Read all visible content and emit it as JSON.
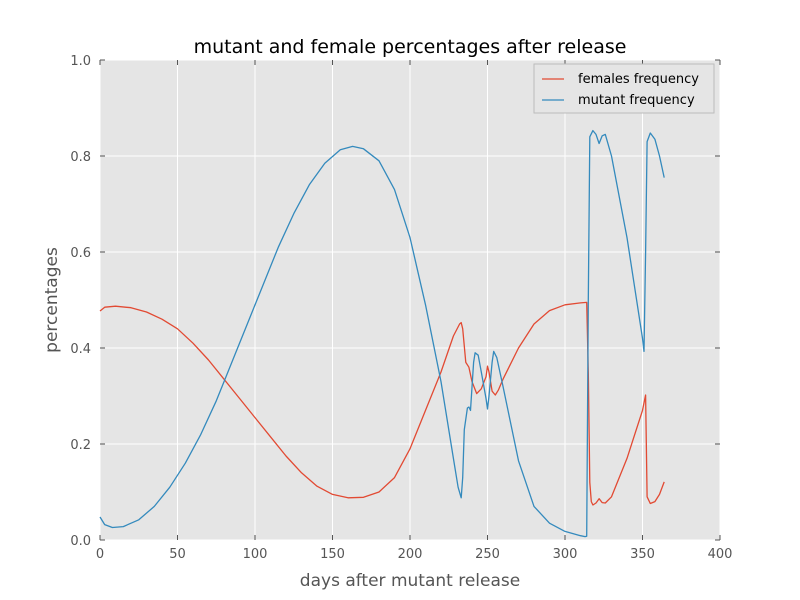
{
  "chart_data": {
    "type": "line",
    "title": "mutant and female percentages after release",
    "xlabel": "days after mutant release",
    "ylabel": "percentages",
    "xlim": [
      0,
      400
    ],
    "ylim": [
      0.0,
      1.0
    ],
    "xticks": [
      "0",
      "50",
      "100",
      "150",
      "200",
      "250",
      "300",
      "350",
      "400"
    ],
    "yticks": [
      "0.0",
      "0.2",
      "0.4",
      "0.6",
      "0.8",
      "1.0"
    ],
    "grid": true,
    "background": "#e5e5e5",
    "legend_position": "top-right",
    "series": [
      {
        "name": "females frequency",
        "color": "#e24a33",
        "points": [
          [
            0,
            0.477
          ],
          [
            3,
            0.485
          ],
          [
            10,
            0.487
          ],
          [
            20,
            0.484
          ],
          [
            30,
            0.475
          ],
          [
            40,
            0.46
          ],
          [
            50,
            0.44
          ],
          [
            60,
            0.41
          ],
          [
            70,
            0.375
          ],
          [
            80,
            0.335
          ],
          [
            90,
            0.295
          ],
          [
            100,
            0.255
          ],
          [
            110,
            0.215
          ],
          [
            120,
            0.175
          ],
          [
            130,
            0.14
          ],
          [
            140,
            0.112
          ],
          [
            150,
            0.095
          ],
          [
            160,
            0.088
          ],
          [
            170,
            0.089
          ],
          [
            180,
            0.1
          ],
          [
            190,
            0.13
          ],
          [
            200,
            0.19
          ],
          [
            210,
            0.27
          ],
          [
            220,
            0.35
          ],
          [
            228,
            0.425
          ],
          [
            232,
            0.45
          ],
          [
            233,
            0.453
          ],
          [
            234,
            0.44
          ],
          [
            236,
            0.37
          ],
          [
            238,
            0.36
          ],
          [
            240,
            0.33
          ],
          [
            243,
            0.305
          ],
          [
            246,
            0.315
          ],
          [
            249,
            0.34
          ],
          [
            250,
            0.362
          ],
          [
            251,
            0.35
          ],
          [
            253,
            0.31
          ],
          [
            255,
            0.302
          ],
          [
            257,
            0.312
          ],
          [
            260,
            0.335
          ],
          [
            270,
            0.4
          ],
          [
            280,
            0.45
          ],
          [
            290,
            0.478
          ],
          [
            300,
            0.49
          ],
          [
            310,
            0.494
          ],
          [
            314,
            0.495
          ],
          [
            315,
            0.35
          ],
          [
            316,
            0.12
          ],
          [
            317,
            0.08
          ],
          [
            318,
            0.073
          ],
          [
            320,
            0.077
          ],
          [
            322,
            0.086
          ],
          [
            324,
            0.078
          ],
          [
            326,
            0.077
          ],
          [
            330,
            0.09
          ],
          [
            340,
            0.17
          ],
          [
            350,
            0.27
          ],
          [
            352,
            0.302
          ],
          [
            353,
            0.09
          ],
          [
            355,
            0.076
          ],
          [
            358,
            0.08
          ],
          [
            361,
            0.095
          ],
          [
            364,
            0.121
          ]
        ]
      },
      {
        "name": "mutant frequency",
        "color": "#348abd",
        "points": [
          [
            0,
            0.048
          ],
          [
            3,
            0.032
          ],
          [
            8,
            0.026
          ],
          [
            15,
            0.028
          ],
          [
            25,
            0.042
          ],
          [
            35,
            0.07
          ],
          [
            45,
            0.11
          ],
          [
            55,
            0.16
          ],
          [
            65,
            0.22
          ],
          [
            75,
            0.29
          ],
          [
            85,
            0.37
          ],
          [
            95,
            0.45
          ],
          [
            105,
            0.53
          ],
          [
            115,
            0.61
          ],
          [
            125,
            0.68
          ],
          [
            135,
            0.74
          ],
          [
            145,
            0.785
          ],
          [
            155,
            0.813
          ],
          [
            163,
            0.82
          ],
          [
            170,
            0.815
          ],
          [
            180,
            0.79
          ],
          [
            190,
            0.73
          ],
          [
            200,
            0.63
          ],
          [
            210,
            0.49
          ],
          [
            220,
            0.33
          ],
          [
            228,
            0.17
          ],
          [
            231,
            0.11
          ],
          [
            233,
            0.088
          ],
          [
            234,
            0.13
          ],
          [
            235,
            0.23
          ],
          [
            237,
            0.275
          ],
          [
            238,
            0.277
          ],
          [
            239,
            0.27
          ],
          [
            241,
            0.37
          ],
          [
            242,
            0.39
          ],
          [
            244,
            0.385
          ],
          [
            246,
            0.35
          ],
          [
            249,
            0.295
          ],
          [
            250,
            0.273
          ],
          [
            251,
            0.3
          ],
          [
            253,
            0.37
          ],
          [
            254,
            0.393
          ],
          [
            256,
            0.38
          ],
          [
            260,
            0.32
          ],
          [
            270,
            0.165
          ],
          [
            280,
            0.07
          ],
          [
            290,
            0.035
          ],
          [
            300,
            0.018
          ],
          [
            310,
            0.009
          ],
          [
            313,
            0.007
          ],
          [
            314,
            0.008
          ],
          [
            315,
            0.5
          ],
          [
            316,
            0.84
          ],
          [
            318,
            0.853
          ],
          [
            320,
            0.845
          ],
          [
            322,
            0.826
          ],
          [
            324,
            0.842
          ],
          [
            326,
            0.845
          ],
          [
            330,
            0.8
          ],
          [
            340,
            0.63
          ],
          [
            350,
            0.42
          ],
          [
            351,
            0.393
          ],
          [
            352,
            0.6
          ],
          [
            353,
            0.83
          ],
          [
            355,
            0.848
          ],
          [
            358,
            0.835
          ],
          [
            361,
            0.8
          ],
          [
            364,
            0.755
          ]
        ]
      }
    ]
  }
}
